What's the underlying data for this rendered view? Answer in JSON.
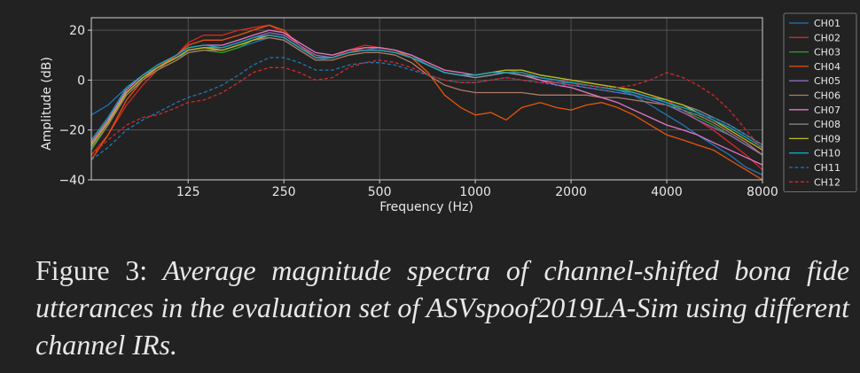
{
  "figure": {
    "label": "Figure 3:",
    "caption": "Average magnitude spectra of channel-shifted bona fide utterances in the evaluation set of ASVspoof2019LA-Sim using different channel IRs."
  },
  "chart_data": {
    "type": "line",
    "title": "",
    "xlabel": "Frequency (Hz)",
    "ylabel": "Amplitude (dB)",
    "xscale": "log",
    "xlim": [
      62,
      8000
    ],
    "ylim": [
      -40,
      25
    ],
    "xticks": [
      125,
      250,
      500,
      1000,
      2000,
      4000,
      8000
    ],
    "xtick_labels": [
      "125",
      "250",
      "500",
      "1000",
      "2000",
      "4000",
      "8000"
    ],
    "yticks": [
      -40,
      -20,
      0,
      20
    ],
    "ytick_labels": [
      "−40",
      "−20",
      "0",
      "20"
    ],
    "grid": true,
    "legend_position": "right, outside plot",
    "x": [
      62,
      70,
      80,
      90,
      100,
      115,
      125,
      140,
      160,
      180,
      200,
      225,
      250,
      280,
      315,
      355,
      400,
      450,
      500,
      560,
      630,
      710,
      800,
      900,
      1000,
      1120,
      1250,
      1400,
      1600,
      1800,
      2000,
      2240,
      2500,
      2800,
      3150,
      3550,
      4000,
      4500,
      5000,
      5600,
      6300,
      7100,
      8000
    ],
    "series": [
      {
        "name": "CH01",
        "color": "#1f77b4",
        "style": "solid",
        "values": [
          -14,
          -10,
          -3,
          2,
          5,
          9,
          11,
          12,
          11,
          13,
          15,
          17,
          16,
          12,
          8,
          9,
          11,
          12,
          13,
          12,
          10,
          6,
          3,
          2,
          1,
          2,
          3,
          2,
          0,
          -1,
          -1,
          -2,
          -3,
          -4,
          -6,
          -10,
          -14,
          -18,
          -22,
          -26,
          -30,
          -35,
          -38
        ]
      },
      {
        "name": "CH02",
        "color": "#d62728",
        "style": "solid",
        "values": [
          -30,
          -22,
          -10,
          -2,
          4,
          10,
          15,
          18,
          18,
          20,
          21,
          22,
          19,
          14,
          9,
          9,
          12,
          14,
          13,
          12,
          10,
          7,
          4,
          3,
          2,
          3,
          4,
          3,
          1,
          0,
          0,
          -1,
          -2,
          -3,
          -4,
          -6,
          -8,
          -12,
          -16,
          -20,
          -25,
          -30,
          -36
        ]
      },
      {
        "name": "CH03",
        "color": "#2ca02c",
        "style": "solid",
        "values": [
          -28,
          -18,
          -6,
          0,
          4,
          8,
          11,
          12,
          11,
          13,
          16,
          18,
          17,
          13,
          9,
          9,
          11,
          12,
          12,
          11,
          9,
          6,
          3,
          2,
          2,
          3,
          4,
          4,
          2,
          1,
          0,
          -1,
          -2,
          -3,
          -5,
          -7,
          -9,
          -12,
          -15,
          -18,
          -22,
          -26,
          -30
        ]
      },
      {
        "name": "CH04",
        "color": "#e6550d",
        "style": "solid",
        "values": [
          -32,
          -22,
          -8,
          0,
          5,
          10,
          14,
          16,
          16,
          18,
          20,
          22,
          20,
          14,
          9,
          9,
          11,
          13,
          13,
          12,
          9,
          3,
          -6,
          -11,
          -14,
          -13,
          -16,
          -11,
          -9,
          -11,
          -12,
          -10,
          -9,
          -11,
          -14,
          -18,
          -22,
          -24,
          -26,
          -28,
          -32,
          -36,
          -40
        ]
      },
      {
        "name": "CH05",
        "color": "#9467bd",
        "style": "solid",
        "values": [
          -26,
          -17,
          -5,
          1,
          5,
          9,
          12,
          13,
          13,
          15,
          17,
          19,
          18,
          14,
          10,
          9,
          11,
          12,
          12,
          11,
          9,
          6,
          3,
          2,
          1,
          2,
          3,
          2,
          0,
          -1,
          -2,
          -3,
          -4,
          -5,
          -6,
          -8,
          -10,
          -13,
          -16,
          -19,
          -22,
          -26,
          -30
        ]
      },
      {
        "name": "CH06",
        "color": "#b07a66",
        "style": "solid",
        "values": [
          -27,
          -18,
          -6,
          0,
          4,
          8,
          11,
          12,
          12,
          14,
          16,
          17,
          16,
          12,
          8,
          8,
          10,
          11,
          11,
          10,
          7,
          2,
          -2,
          -4,
          -5,
          -5,
          -5,
          -5,
          -6,
          -6,
          -6,
          -6,
          -7,
          -7,
          -8,
          -9,
          -10,
          -12,
          -14,
          -17,
          -21,
          -25,
          -30
        ]
      },
      {
        "name": "CH07",
        "color": "#e377c2",
        "style": "solid",
        "values": [
          -25,
          -16,
          -4,
          2,
          6,
          10,
          13,
          14,
          14,
          16,
          18,
          20,
          19,
          15,
          11,
          10,
          12,
          13,
          13,
          12,
          10,
          7,
          4,
          3,
          2,
          3,
          3,
          2,
          0,
          -2,
          -3,
          -5,
          -7,
          -9,
          -12,
          -15,
          -18,
          -20,
          -22,
          -25,
          -28,
          -31,
          -34
        ]
      },
      {
        "name": "CH08",
        "color": "#8c8c8c",
        "style": "solid",
        "values": [
          -26,
          -17,
          -5,
          1,
          5,
          9,
          12,
          13,
          13,
          15,
          17,
          18,
          17,
          13,
          9,
          9,
          11,
          12,
          12,
          11,
          9,
          6,
          3,
          2,
          1,
          2,
          3,
          2,
          1,
          0,
          -1,
          -2,
          -3,
          -4,
          -5,
          -7,
          -8,
          -10,
          -12,
          -15,
          -18,
          -22,
          -26
        ]
      },
      {
        "name": "CH09",
        "color": "#bcbd22",
        "style": "solid",
        "values": [
          -26,
          -17,
          -5,
          1,
          5,
          9,
          12,
          13,
          12,
          14,
          16,
          18,
          17,
          13,
          9,
          9,
          11,
          12,
          12,
          11,
          9,
          6,
          3,
          2,
          2,
          3,
          4,
          4,
          2,
          1,
          0,
          -1,
          -2,
          -3,
          -4,
          -6,
          -8,
          -10,
          -13,
          -16,
          -20,
          -24,
          -28
        ]
      },
      {
        "name": "CH10",
        "color": "#17a2be",
        "style": "solid",
        "values": [
          -24,
          -15,
          -3,
          2,
          6,
          10,
          13,
          14,
          13,
          15,
          17,
          18,
          17,
          13,
          9,
          9,
          11,
          12,
          12,
          11,
          9,
          6,
          3,
          2,
          2,
          3,
          3,
          3,
          1,
          0,
          -1,
          -2,
          -3,
          -4,
          -5,
          -7,
          -9,
          -11,
          -13,
          -16,
          -19,
          -23,
          -27
        ]
      },
      {
        "name": "CH11",
        "color": "#1f77b4",
        "style": "dashed",
        "values": [
          -32,
          -27,
          -20,
          -16,
          -13,
          -9,
          -7,
          -5,
          -2,
          2,
          6,
          9,
          9,
          7,
          4,
          4,
          6,
          7,
          7,
          6,
          4,
          2,
          0,
          -1,
          -1,
          0,
          1,
          0,
          -1,
          -2,
          -2,
          -3,
          -4,
          -5,
          -6,
          -8,
          -10,
          -12,
          -14,
          -15,
          -18,
          -22,
          -26
        ]
      },
      {
        "name": "CH12",
        "color": "#d62728",
        "style": "dashed",
        "values": [
          -30,
          -24,
          -18,
          -15,
          -14,
          -11,
          -9,
          -8,
          -5,
          -1,
          3,
          5,
          5,
          3,
          0,
          1,
          5,
          7,
          8,
          7,
          5,
          2,
          0,
          -1,
          -1,
          0,
          1,
          0,
          -1,
          -1,
          -2,
          -2,
          -3,
          -3,
          -2,
          0,
          3,
          1,
          -2,
          -6,
          -12,
          -20,
          -28
        ]
      }
    ]
  }
}
